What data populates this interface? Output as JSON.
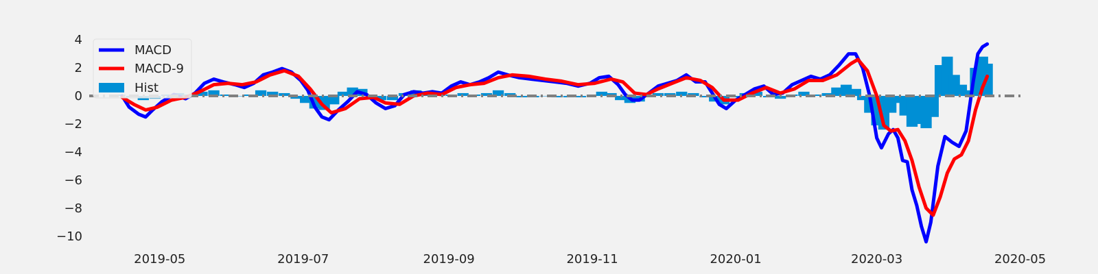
{
  "chart_data": {
    "type": "line",
    "title": "",
    "xlabel": "",
    "ylabel": "",
    "ylim": [
      -10.5,
      4.3
    ],
    "xlim": [
      "2019-04-01",
      "2020-05-02"
    ],
    "grid": false,
    "legend_position": "top-left",
    "x_ticks": [
      "2019-05",
      "2019-07",
      "2019-09",
      "2019-11",
      "2020-01",
      "2020-03",
      "2020-05"
    ],
    "y_ticks": [
      4,
      2,
      0,
      -2,
      -4,
      -6,
      -8,
      -10
    ],
    "y_tick_labels": [
      "4",
      "2",
      "0",
      "−2",
      "−4",
      "−6",
      "−8",
      "−10"
    ],
    "reference_line": {
      "y": 0,
      "color": "#808080",
      "style": "dash-dot"
    },
    "series": [
      {
        "name": "MACD",
        "kind": "line",
        "color": "#0000ff",
        "points": [
          [
            "2019-04-15",
            0.0
          ],
          [
            "2019-04-18",
            -0.8
          ],
          [
            "2019-04-22",
            -1.3
          ],
          [
            "2019-04-25",
            -1.5
          ],
          [
            "2019-04-28",
            -1.0
          ],
          [
            "2019-05-02",
            -0.4
          ],
          [
            "2019-05-07",
            0.1
          ],
          [
            "2019-05-12",
            -0.2
          ],
          [
            "2019-05-16",
            0.2
          ],
          [
            "2019-05-20",
            0.9
          ],
          [
            "2019-05-24",
            1.2
          ],
          [
            "2019-05-28",
            1.0
          ],
          [
            "2019-06-02",
            0.8
          ],
          [
            "2019-06-06",
            0.6
          ],
          [
            "2019-06-10",
            0.9
          ],
          [
            "2019-06-14",
            1.5
          ],
          [
            "2019-06-18",
            1.7
          ],
          [
            "2019-06-22",
            1.95
          ],
          [
            "2019-06-26",
            1.7
          ],
          [
            "2019-06-30",
            1.1
          ],
          [
            "2019-07-03",
            0.4
          ],
          [
            "2019-07-06",
            -0.8
          ],
          [
            "2019-07-09",
            -1.5
          ],
          [
            "2019-07-12",
            -1.7
          ],
          [
            "2019-07-16",
            -1.0
          ],
          [
            "2019-07-20",
            -0.4
          ],
          [
            "2019-07-24",
            0.3
          ],
          [
            "2019-07-28",
            0.1
          ],
          [
            "2019-08-01",
            -0.5
          ],
          [
            "2019-08-05",
            -0.9
          ],
          [
            "2019-08-09",
            -0.7
          ],
          [
            "2019-08-13",
            0.1
          ],
          [
            "2019-08-17",
            0.3
          ],
          [
            "2019-08-21",
            0.2
          ],
          [
            "2019-08-25",
            0.3
          ],
          [
            "2019-08-29",
            0.2
          ],
          [
            "2019-09-02",
            0.7
          ],
          [
            "2019-09-06",
            1.0
          ],
          [
            "2019-09-10",
            0.8
          ],
          [
            "2019-09-14",
            1.0
          ],
          [
            "2019-09-18",
            1.3
          ],
          [
            "2019-09-22",
            1.7
          ],
          [
            "2019-09-26",
            1.5
          ],
          [
            "2019-10-01",
            1.3
          ],
          [
            "2019-10-06",
            1.2
          ],
          [
            "2019-10-11",
            1.1
          ],
          [
            "2019-10-16",
            1.0
          ],
          [
            "2019-10-21",
            0.9
          ],
          [
            "2019-10-26",
            0.7
          ],
          [
            "2019-10-31",
            0.9
          ],
          [
            "2019-11-04",
            1.3
          ],
          [
            "2019-11-08",
            1.4
          ],
          [
            "2019-11-12",
            0.8
          ],
          [
            "2019-11-15",
            0.1
          ],
          [
            "2019-11-18",
            -0.3
          ],
          [
            "2019-11-21",
            -0.3
          ],
          [
            "2019-11-25",
            0.2
          ],
          [
            "2019-11-29",
            0.7
          ],
          [
            "2019-12-03",
            0.9
          ],
          [
            "2019-12-07",
            1.1
          ],
          [
            "2019-12-11",
            1.5
          ],
          [
            "2019-12-15",
            1.0
          ],
          [
            "2019-12-19",
            1.0
          ],
          [
            "2019-12-22",
            0.2
          ],
          [
            "2019-12-25",
            -0.6
          ],
          [
            "2019-12-28",
            -0.9
          ],
          [
            "2020-01-01",
            -0.3
          ],
          [
            "2020-01-05",
            0.1
          ],
          [
            "2020-01-09",
            0.5
          ],
          [
            "2020-01-13",
            0.7
          ],
          [
            "2020-01-17",
            0.1
          ],
          [
            "2020-01-21",
            0.2
          ],
          [
            "2020-01-25",
            0.8
          ],
          [
            "2020-01-29",
            1.1
          ],
          [
            "2020-02-02",
            1.4
          ],
          [
            "2020-02-06",
            1.2
          ],
          [
            "2020-02-10",
            1.5
          ],
          [
            "2020-02-14",
            2.2
          ],
          [
            "2020-02-18",
            3.0
          ],
          [
            "2020-02-21",
            3.0
          ],
          [
            "2020-02-24",
            2.0
          ],
          [
            "2020-02-27",
            0.0
          ],
          [
            "2020-03-01",
            -3.0
          ],
          [
            "2020-03-03",
            -3.7
          ],
          [
            "2020-03-06",
            -2.7
          ],
          [
            "2020-03-08",
            -2.4
          ],
          [
            "2020-03-10",
            -3.0
          ],
          [
            "2020-03-12",
            -4.6
          ],
          [
            "2020-03-14",
            -4.7
          ],
          [
            "2020-03-16",
            -6.7
          ],
          [
            "2020-03-18",
            -7.8
          ],
          [
            "2020-03-20",
            -9.3
          ],
          [
            "2020-03-22",
            -10.4
          ],
          [
            "2020-03-24",
            -9.0
          ],
          [
            "2020-03-27",
            -5.0
          ],
          [
            "2020-03-30",
            -2.9
          ],
          [
            "2020-04-02",
            -3.3
          ],
          [
            "2020-04-05",
            -3.6
          ],
          [
            "2020-04-08",
            -2.5
          ],
          [
            "2020-04-11",
            1.0
          ],
          [
            "2020-04-13",
            3.0
          ],
          [
            "2020-04-15",
            3.5
          ],
          [
            "2020-04-17",
            3.7
          ]
        ]
      },
      {
        "name": "MACD-9",
        "kind": "line",
        "color": "#ff0000",
        "points": [
          [
            "2019-04-15",
            -0.1
          ],
          [
            "2019-04-20",
            -0.6
          ],
          [
            "2019-04-25",
            -1.0
          ],
          [
            "2019-04-30",
            -0.8
          ],
          [
            "2019-05-06",
            -0.3
          ],
          [
            "2019-05-12",
            -0.1
          ],
          [
            "2019-05-18",
            0.3
          ],
          [
            "2019-05-24",
            0.8
          ],
          [
            "2019-05-30",
            0.9
          ],
          [
            "2019-06-05",
            0.8
          ],
          [
            "2019-06-11",
            1.0
          ],
          [
            "2019-06-17",
            1.5
          ],
          [
            "2019-06-23",
            1.8
          ],
          [
            "2019-06-29",
            1.4
          ],
          [
            "2019-07-04",
            0.5
          ],
          [
            "2019-07-09",
            -0.6
          ],
          [
            "2019-07-13",
            -1.2
          ],
          [
            "2019-07-19",
            -0.9
          ],
          [
            "2019-07-25",
            -0.2
          ],
          [
            "2019-07-31",
            -0.1
          ],
          [
            "2019-08-05",
            -0.5
          ],
          [
            "2019-08-11",
            -0.6
          ],
          [
            "2019-08-17",
            0.0
          ],
          [
            "2019-08-23",
            0.2
          ],
          [
            "2019-08-29",
            0.1
          ],
          [
            "2019-09-04",
            0.6
          ],
          [
            "2019-09-10",
            0.8
          ],
          [
            "2019-09-16",
            0.9
          ],
          [
            "2019-09-22",
            1.3
          ],
          [
            "2019-09-28",
            1.5
          ],
          [
            "2019-10-05",
            1.4
          ],
          [
            "2019-10-12",
            1.2
          ],
          [
            "2019-10-19",
            1.05
          ],
          [
            "2019-10-26",
            0.8
          ],
          [
            "2019-11-02",
            0.9
          ],
          [
            "2019-11-09",
            1.2
          ],
          [
            "2019-11-14",
            1.0
          ],
          [
            "2019-11-19",
            0.2
          ],
          [
            "2019-11-24",
            0.1
          ],
          [
            "2019-11-29",
            0.5
          ],
          [
            "2019-12-05",
            0.9
          ],
          [
            "2019-12-11",
            1.3
          ],
          [
            "2019-12-17",
            1.1
          ],
          [
            "2019-12-22",
            0.6
          ],
          [
            "2019-12-27",
            -0.3
          ],
          [
            "2020-01-02",
            -0.3
          ],
          [
            "2020-01-08",
            0.2
          ],
          [
            "2020-01-14",
            0.6
          ],
          [
            "2020-01-20",
            0.2
          ],
          [
            "2020-01-26",
            0.5
          ],
          [
            "2020-02-01",
            1.1
          ],
          [
            "2020-02-07",
            1.1
          ],
          [
            "2020-02-13",
            1.5
          ],
          [
            "2020-02-19",
            2.3
          ],
          [
            "2020-02-22",
            2.6
          ],
          [
            "2020-02-26",
            1.8
          ],
          [
            "2020-03-01",
            0.0
          ],
          [
            "2020-03-04",
            -2.1
          ],
          [
            "2020-03-07",
            -2.5
          ],
          [
            "2020-03-10",
            -2.4
          ],
          [
            "2020-03-13",
            -3.2
          ],
          [
            "2020-03-16",
            -4.6
          ],
          [
            "2020-03-19",
            -6.5
          ],
          [
            "2020-03-22",
            -8.0
          ],
          [
            "2020-03-25",
            -8.5
          ],
          [
            "2020-03-28",
            -7.2
          ],
          [
            "2020-03-31",
            -5.5
          ],
          [
            "2020-04-03",
            -4.5
          ],
          [
            "2020-04-06",
            -4.2
          ],
          [
            "2020-04-09",
            -3.2
          ],
          [
            "2020-04-12",
            -1.0
          ],
          [
            "2020-04-15",
            0.6
          ],
          [
            "2020-04-17",
            1.4
          ]
        ]
      },
      {
        "name": "Hist",
        "kind": "bar",
        "color": "#008fd5",
        "points": [
          [
            "2019-04-14",
            0.1
          ],
          [
            "2019-04-19",
            -0.1
          ],
          [
            "2019-04-24",
            -0.3
          ],
          [
            "2019-04-29",
            -0.2
          ],
          [
            "2019-05-04",
            0.1
          ],
          [
            "2019-05-09",
            0.2
          ],
          [
            "2019-05-14",
            0.1
          ],
          [
            "2019-05-19",
            0.3
          ],
          [
            "2019-05-24",
            0.4
          ],
          [
            "2019-05-29",
            0.1
          ],
          [
            "2019-06-03",
            0.0
          ],
          [
            "2019-06-08",
            0.1
          ],
          [
            "2019-06-13",
            0.4
          ],
          [
            "2019-06-18",
            0.3
          ],
          [
            "2019-06-23",
            0.2
          ],
          [
            "2019-06-28",
            -0.2
          ],
          [
            "2019-07-02",
            -0.5
          ],
          [
            "2019-07-06",
            -0.9
          ],
          [
            "2019-07-10",
            -1.0
          ],
          [
            "2019-07-14",
            -0.6
          ],
          [
            "2019-07-18",
            0.3
          ],
          [
            "2019-07-22",
            0.6
          ],
          [
            "2019-07-26",
            0.5
          ],
          [
            "2019-07-30",
            0.1
          ],
          [
            "2019-08-03",
            -0.3
          ],
          [
            "2019-08-08",
            -0.3
          ],
          [
            "2019-08-13",
            0.2
          ],
          [
            "2019-08-18",
            0.4
          ],
          [
            "2019-08-23",
            0.3
          ],
          [
            "2019-08-28",
            0.2
          ],
          [
            "2019-09-02",
            0.1
          ],
          [
            "2019-09-07",
            0.2
          ],
          [
            "2019-09-12",
            0.1
          ],
          [
            "2019-09-17",
            0.2
          ],
          [
            "2019-09-22",
            0.4
          ],
          [
            "2019-09-27",
            0.2
          ],
          [
            "2019-10-02",
            -0.1
          ],
          [
            "2019-10-07",
            -0.1
          ],
          [
            "2019-10-12",
            0.0
          ],
          [
            "2019-10-17",
            -0.1
          ],
          [
            "2019-10-22",
            -0.1
          ],
          [
            "2019-10-27",
            -0.1
          ],
          [
            "2019-11-01",
            0.1
          ],
          [
            "2019-11-05",
            0.3
          ],
          [
            "2019-11-09",
            0.2
          ],
          [
            "2019-11-13",
            -0.3
          ],
          [
            "2019-11-17",
            -0.5
          ],
          [
            "2019-11-21",
            -0.4
          ],
          [
            "2019-11-25",
            0.1
          ],
          [
            "2019-11-29",
            0.2
          ],
          [
            "2019-12-04",
            0.2
          ],
          [
            "2019-12-09",
            0.3
          ],
          [
            "2019-12-14",
            0.2
          ],
          [
            "2019-12-19",
            -0.1
          ],
          [
            "2019-12-23",
            -0.4
          ],
          [
            "2019-12-27",
            -0.6
          ],
          [
            "2020-01-01",
            -0.1
          ],
          [
            "2020-01-05",
            0.2
          ],
          [
            "2020-01-10",
            0.3
          ],
          [
            "2020-01-15",
            -0.1
          ],
          [
            "2020-01-20",
            -0.2
          ],
          [
            "2020-01-25",
            0.1
          ],
          [
            "2020-01-30",
            0.3
          ],
          [
            "2020-02-04",
            0.1
          ],
          [
            "2020-02-09",
            0.2
          ],
          [
            "2020-02-13",
            0.6
          ],
          [
            "2020-02-17",
            0.8
          ],
          [
            "2020-02-21",
            0.5
          ],
          [
            "2020-02-24",
            -0.3
          ],
          [
            "2020-02-27",
            -1.2
          ],
          [
            "2020-03-01",
            -2.1
          ],
          [
            "2020-03-04",
            -2.4
          ],
          [
            "2020-03-07",
            -1.2
          ],
          [
            "2020-03-10",
            -0.5
          ],
          [
            "2020-03-13",
            -1.4
          ],
          [
            "2020-03-16",
            -2.2
          ],
          [
            "2020-03-19",
            -2.0
          ],
          [
            "2020-03-22",
            -2.3
          ],
          [
            "2020-03-25",
            -1.5
          ],
          [
            "2020-03-28",
            2.2
          ],
          [
            "2020-03-31",
            2.8
          ],
          [
            "2020-04-03",
            1.5
          ],
          [
            "2020-04-06",
            0.8
          ],
          [
            "2020-04-09",
            0.4
          ],
          [
            "2020-04-12",
            2.0
          ],
          [
            "2020-04-15",
            2.8
          ],
          [
            "2020-04-17",
            2.3
          ]
        ]
      }
    ]
  }
}
